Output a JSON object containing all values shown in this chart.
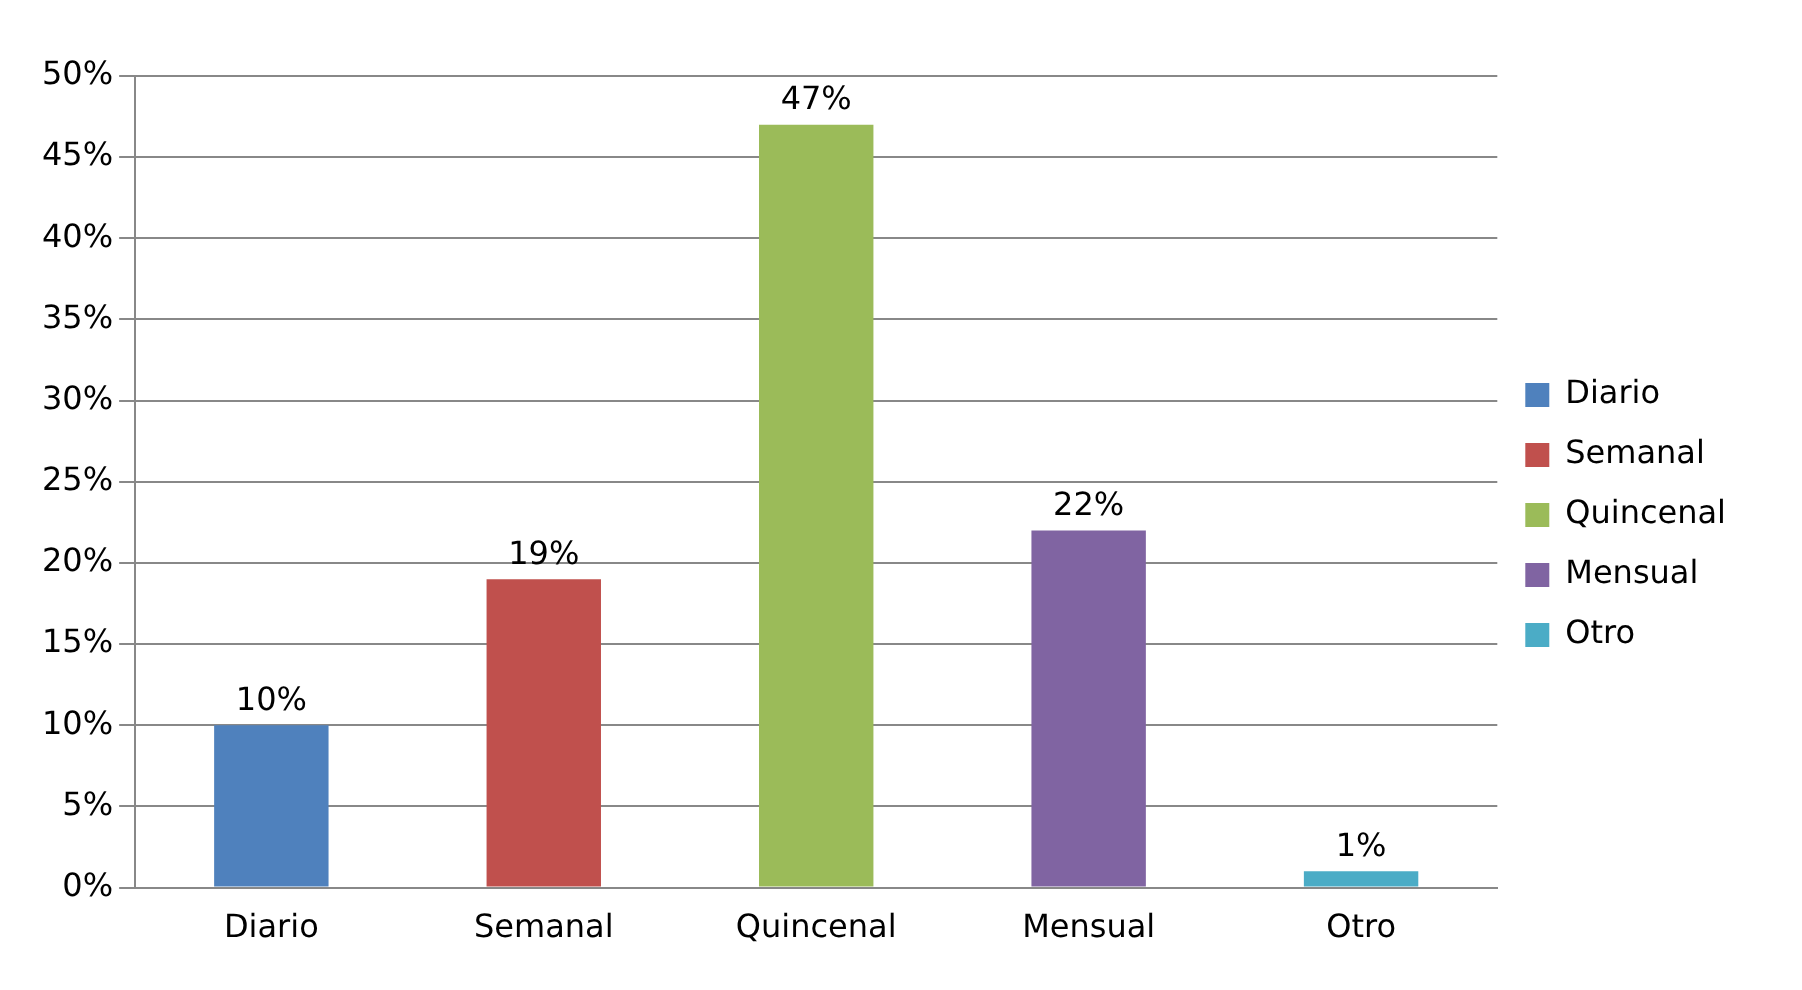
{
  "chart_data": {
    "type": "bar",
    "categories": [
      "Diario",
      "Semanal",
      "Quincenal",
      "Mensual",
      "Otro"
    ],
    "series": [
      {
        "name": "Diario",
        "color": "#4f81bd",
        "values": [
          10,
          null,
          null,
          null,
          null
        ],
        "value_labels": [
          "10%",
          null,
          null,
          null,
          null
        ]
      },
      {
        "name": "Semanal",
        "color": "#c0504d",
        "values": [
          null,
          19,
          null,
          null,
          null
        ],
        "value_labels": [
          null,
          "19%",
          null,
          null,
          null
        ]
      },
      {
        "name": "Quincenal",
        "color": "#9bbb59",
        "values": [
          null,
          null,
          47,
          null,
          null
        ],
        "value_labels": [
          null,
          null,
          "47%",
          null,
          null
        ]
      },
      {
        "name": "Mensual",
        "color": "#8064a2",
        "values": [
          null,
          null,
          null,
          22,
          null
        ],
        "value_labels": [
          null,
          null,
          null,
          "22%",
          null
        ]
      },
      {
        "name": "Otro",
        "color": "#4bacc6",
        "values": [
          null,
          null,
          null,
          null,
          1
        ],
        "value_labels": [
          null,
          null,
          null,
          null,
          "1%"
        ]
      }
    ],
    "ylim": [
      0,
      50
    ],
    "yticks": [
      {
        "value": 0,
        "label": "0%"
      },
      {
        "value": 5,
        "label": "5%"
      },
      {
        "value": 10,
        "label": "10%"
      },
      {
        "value": 15,
        "label": "15%"
      },
      {
        "value": 20,
        "label": "20%"
      },
      {
        "value": 25,
        "label": "25%"
      },
      {
        "value": 30,
        "label": "30%"
      },
      {
        "value": 35,
        "label": "35%"
      },
      {
        "value": 40,
        "label": "40%"
      },
      {
        "value": 45,
        "label": "45%"
      },
      {
        "value": 50,
        "label": "50%"
      }
    ],
    "grid": "y",
    "legend": "right"
  }
}
